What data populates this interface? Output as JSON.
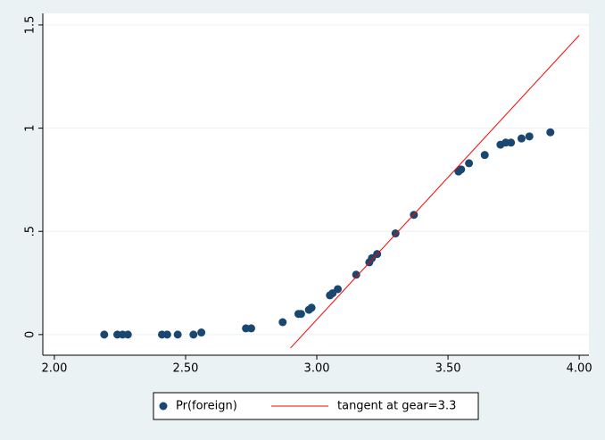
{
  "chart_data": {
    "type": "scatter",
    "series": [
      {
        "name": "Pr(foreign)",
        "type": "scatter",
        "color": "#1a476f",
        "x": [
          2.19,
          2.24,
          2.26,
          2.28,
          2.41,
          2.43,
          2.47,
          2.53,
          2.56,
          2.73,
          2.75,
          2.87,
          2.93,
          2.94,
          2.97,
          2.98,
          3.05,
          3.06,
          3.08,
          3.15,
          3.2,
          3.21,
          3.23,
          3.3,
          3.37,
          3.54,
          3.55,
          3.58,
          3.64,
          3.7,
          3.72,
          3.74,
          3.78,
          3.81,
          3.89
        ],
        "values": [
          0,
          0,
          0,
          0,
          0,
          0,
          0,
          0,
          0.01,
          0.03,
          0.03,
          0.06,
          0.1,
          0.1,
          0.12,
          0.13,
          0.19,
          0.2,
          0.22,
          0.29,
          0.35,
          0.37,
          0.39,
          0.49,
          0.58,
          0.79,
          0.8,
          0.83,
          0.87,
          0.92,
          0.93,
          0.93,
          0.95,
          0.96,
          0.98
        ]
      },
      {
        "name": "tangent at gear=3.3",
        "type": "line",
        "color": "#ff0000",
        "x": [
          2.9,
          4.0
        ],
        "values": [
          -0.065,
          1.45
        ]
      }
    ],
    "xlim": [
      1.956,
      4.037
    ],
    "ylim": [
      -0.1,
      1.556
    ],
    "xticks": [
      {
        "value": 2,
        "label": "2.00"
      },
      {
        "value": 2.5,
        "label": "2.50"
      },
      {
        "value": 3,
        "label": "3.00"
      },
      {
        "value": 3.5,
        "label": "3.50"
      },
      {
        "value": 4,
        "label": "4.00"
      }
    ],
    "yticks": [
      0,
      {
        "value": 0.5,
        "label": ".5"
      },
      1,
      1.5
    ],
    "grid": true,
    "legend": "bottom"
  }
}
